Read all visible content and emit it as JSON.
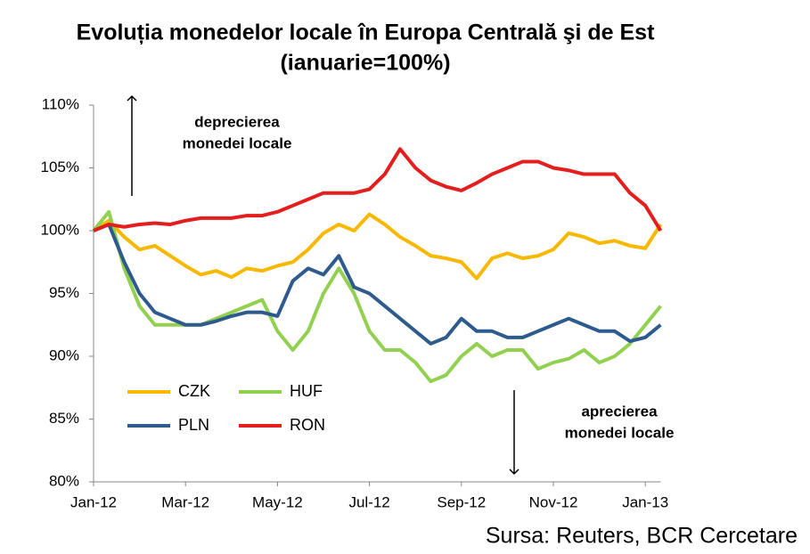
{
  "chart_data": {
    "type": "line",
    "title": "Evoluția monedelor locale în Europa Centrală şi de Est",
    "subtitle": "(ianuarie=100%)",
    "source": "Sursa: Reuters, BCR Cercetare",
    "annotations": [
      {
        "lines": [
          "deprecierea",
          "monedei locale"
        ]
      },
      {
        "lines": [
          "aprecierea",
          "monedei locale"
        ]
      }
    ],
    "categories": [
      "Jan-12",
      null,
      null,
      null,
      null,
      null,
      "Mar-12",
      null,
      null,
      null,
      null,
      null,
      "May-12",
      null,
      null,
      null,
      null,
      null,
      "Jul-12",
      null,
      null,
      null,
      null,
      null,
      "Sep-12",
      null,
      null,
      null,
      null,
      null,
      "Nov-12",
      null,
      null,
      null,
      null,
      null,
      "Jan-13",
      null
    ],
    "ylim": [
      80,
      110
    ],
    "yticks": [
      {
        "value": 80,
        "label": "80%"
      },
      {
        "value": 85,
        "label": "85%"
      },
      {
        "value": 90,
        "label": "90%"
      },
      {
        "value": 95,
        "label": "95%"
      },
      {
        "value": 100,
        "label": "100%"
      },
      {
        "value": 105,
        "label": "105%"
      },
      {
        "value": 110,
        "label": "110%"
      }
    ],
    "grid": false,
    "series": [
      {
        "name": "CZK",
        "color": "#f9b800",
        "values": [
          100,
          100.8,
          99.5,
          98.5,
          98.8,
          98,
          97.2,
          96.5,
          96.8,
          96.3,
          97,
          96.8,
          97.2,
          97.5,
          98.5,
          99.8,
          100.5,
          100,
          101.3,
          100.5,
          99.5,
          98.8,
          98,
          97.8,
          97.5,
          96.2,
          97.8,
          98.2,
          97.8,
          98,
          98.5,
          99.8,
          99.5,
          99,
          99.2,
          98.8,
          98.6,
          100.5
        ]
      },
      {
        "name": "HUF",
        "color": "#92d050",
        "values": [
          100,
          101.5,
          97,
          94,
          92.5,
          92.5,
          92.5,
          92.5,
          93,
          93.5,
          94,
          94.5,
          92,
          90.5,
          92,
          95,
          97,
          95,
          92,
          90.5,
          90.5,
          89.5,
          88,
          88.5,
          90,
          91,
          90,
          90.5,
          90.5,
          89,
          89.5,
          89.8,
          90.5,
          89.5,
          90,
          91,
          92.5,
          94
        ]
      },
      {
        "name": "PLN",
        "color": "#2e5b8e",
        "values": [
          100,
          100.5,
          97.5,
          95,
          93.5,
          93,
          92.5,
          92.5,
          92.8,
          93.2,
          93.5,
          93.5,
          93.2,
          96,
          97,
          96.5,
          98,
          95.5,
          95,
          94,
          93,
          92,
          91,
          91.5,
          93,
          92,
          92,
          91.5,
          91.5,
          92,
          92.5,
          93,
          92.5,
          92,
          92,
          91.2,
          91.5,
          92.5
        ]
      },
      {
        "name": "RON",
        "color": "#e41d1d",
        "values": [
          100,
          100.5,
          100.3,
          100.5,
          100.6,
          100.5,
          100.8,
          101,
          101,
          101,
          101.2,
          101.2,
          101.5,
          102,
          102.5,
          103,
          103,
          103,
          103.3,
          104.5,
          106.5,
          105,
          104,
          103.5,
          103.2,
          103.8,
          104.5,
          105,
          105.5,
          105.5,
          105,
          104.8,
          104.5,
          104.5,
          104.5,
          103,
          102,
          100
        ]
      }
    ]
  }
}
